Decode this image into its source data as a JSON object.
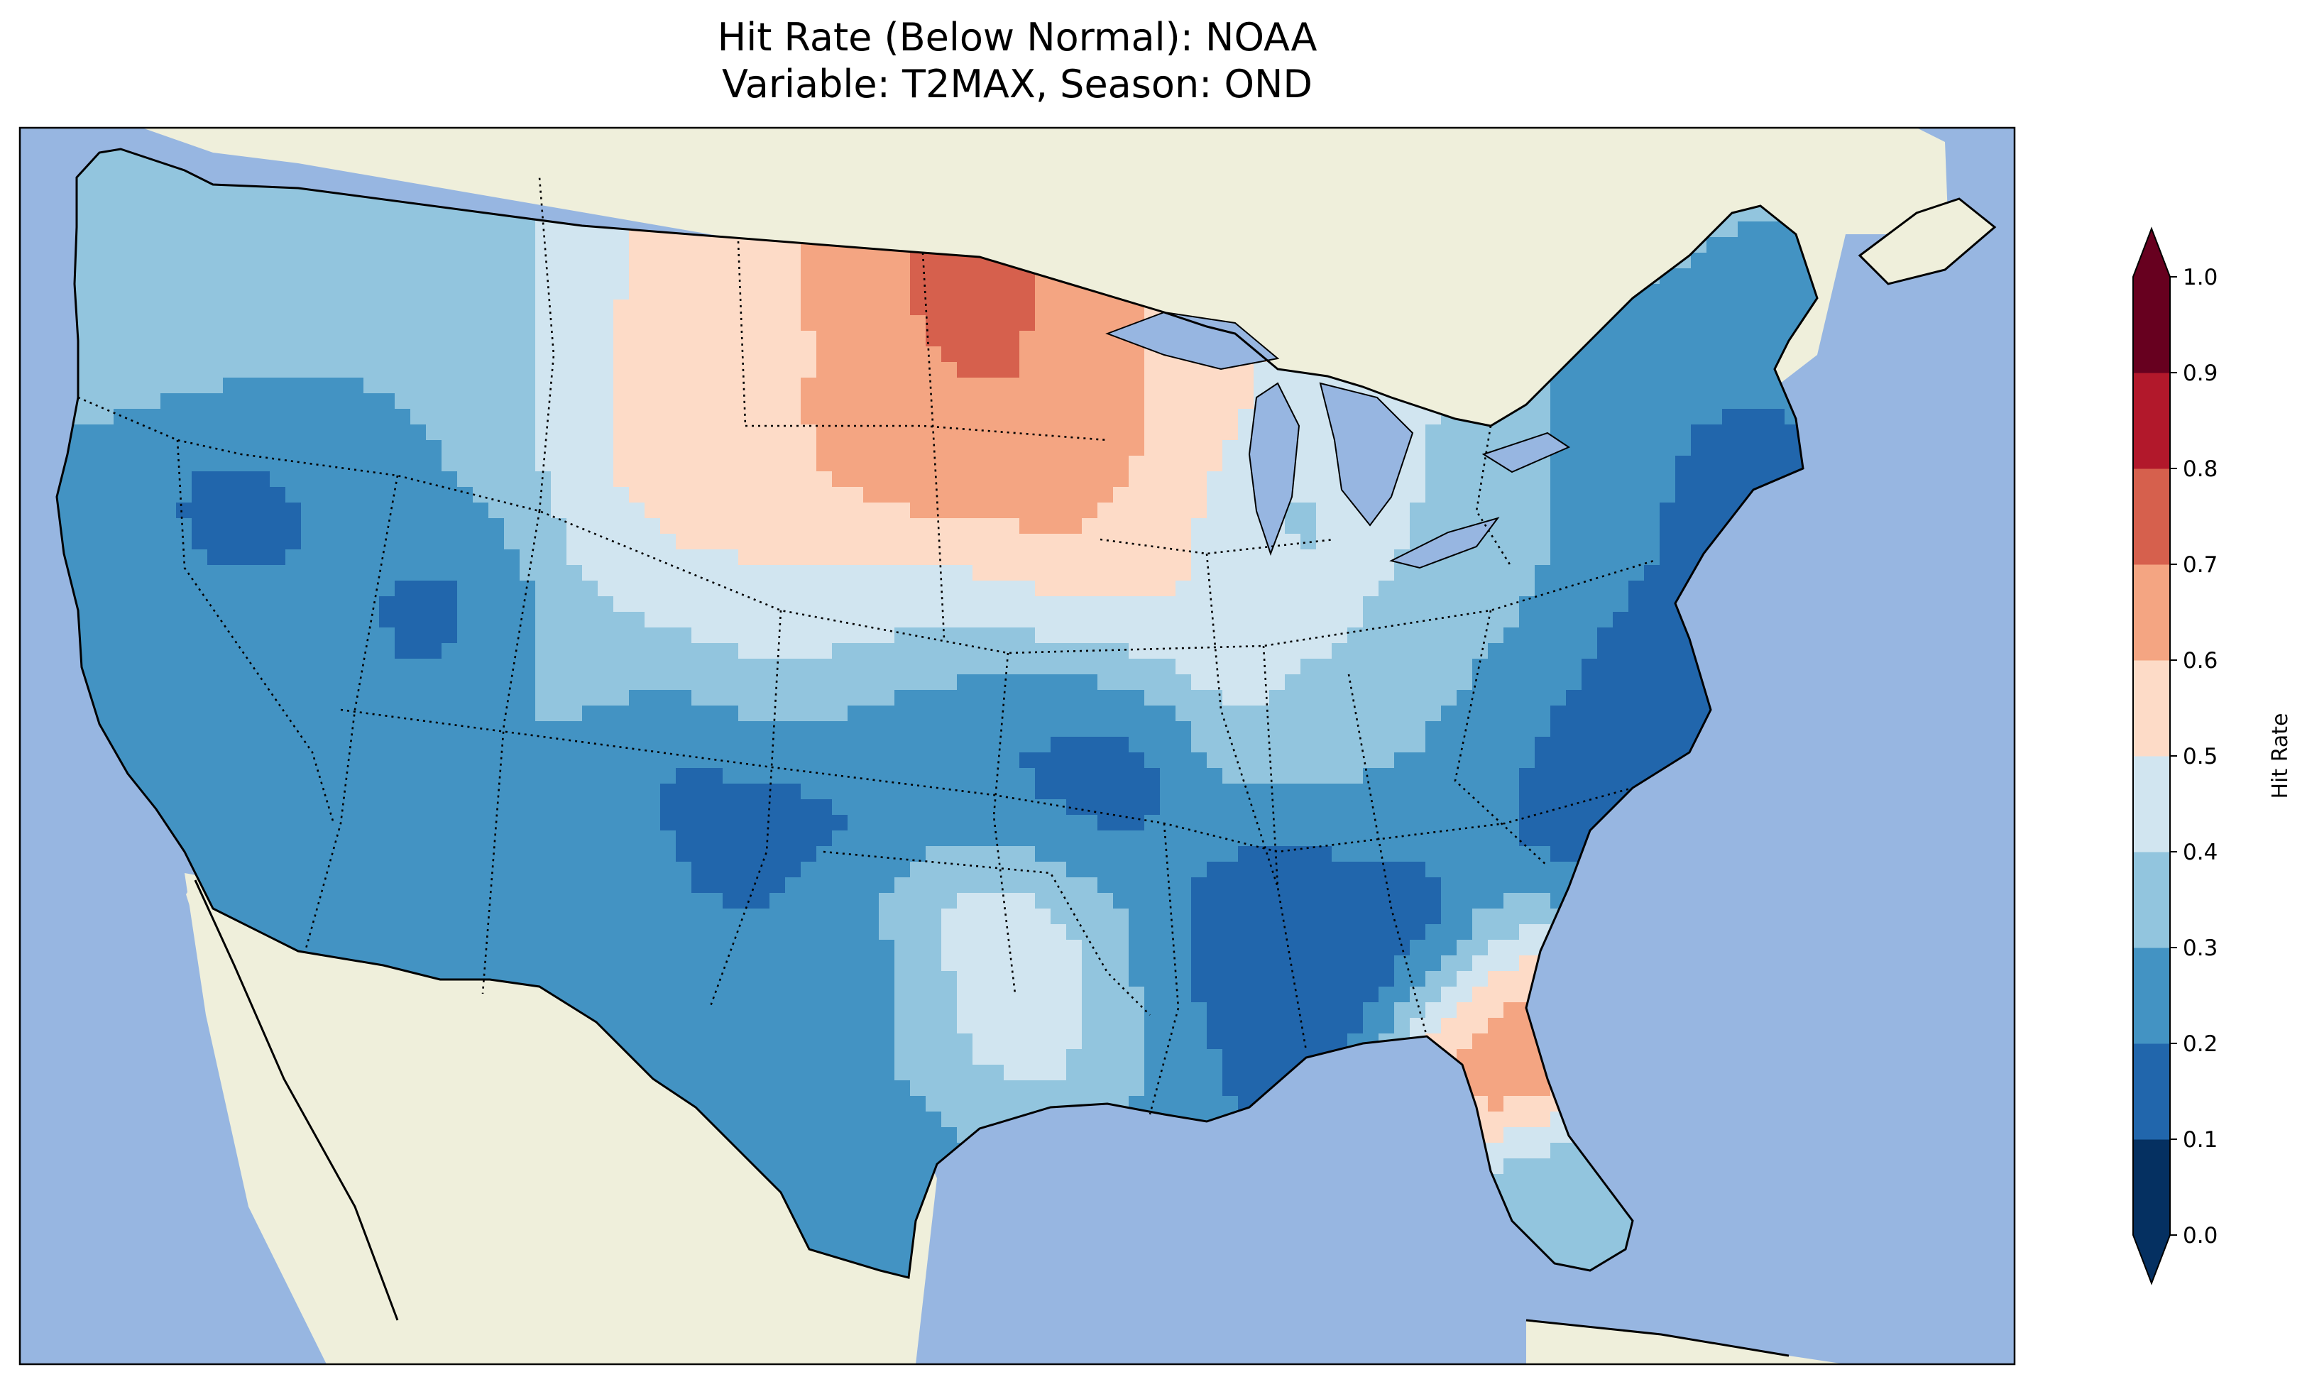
{
  "title": {
    "line1": "Hit Rate (Below Normal): NOAA",
    "line2": "Variable: T2MAX, Season: OND"
  },
  "map": {
    "region": "Contiguous United States",
    "ocean_color": "#97b6e1",
    "land_color": "#efefdb",
    "state_borders": "dotted",
    "coastline": "solid"
  },
  "colorbar": {
    "label": "Hit Rate",
    "ticks": [
      "0.0",
      "0.1",
      "0.2",
      "0.3",
      "0.4",
      "0.5",
      "0.6",
      "0.7",
      "0.8",
      "0.9",
      "1.0"
    ],
    "extend": "both",
    "colors": [
      "#053061",
      "#2166ac",
      "#4393c3",
      "#92c5de",
      "#d1e5f0",
      "#fddbc7",
      "#f4a582",
      "#d6604d",
      "#b2182b",
      "#67001f"
    ],
    "under_color": "#053061",
    "over_color": "#67001f"
  }
}
